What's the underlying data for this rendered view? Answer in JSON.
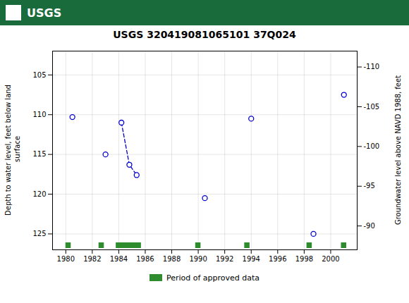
{
  "chart_data": {
    "type": "scatter",
    "title": "USGS 320419081065101 37Q024",
    "annotations": [
      {
        "text": "USGS",
        "color": "#1a6b3c"
      }
    ],
    "ylabel": "Depth to water level, feet below land\n surface",
    "y2label": "Groundwater level above NAVD 1988, feet",
    "xlim": [
      1979,
      2002
    ],
    "xticks": [
      1980,
      1982,
      1984,
      1986,
      1988,
      1990,
      1992,
      1994,
      1996,
      1998,
      2000
    ],
    "ylim": [
      127,
      102
    ],
    "yticks": [
      105,
      110,
      115,
      120,
      125
    ],
    "y2lim": [
      -87,
      -112
    ],
    "y2ticks": [
      -90,
      -95,
      -100,
      -105,
      -110
    ],
    "grid": true,
    "series": [
      {
        "type": "line",
        "line_style": "dashed",
        "color": "#0000cc",
        "x": [
          1984.2,
          1984.8,
          1985.35
        ],
        "values": [
          111.0,
          116.3,
          117.6
        ]
      },
      {
        "type": "scatter",
        "marker": "o",
        "color": "#0000cc",
        "x": [
          1980.5,
          1983.0,
          1984.2,
          1984.8,
          1985.35,
          1990.5,
          1994.0,
          1998.7,
          2001.0
        ],
        "values": [
          110.3,
          115.0,
          111.0,
          116.3,
          117.6,
          120.5,
          110.5,
          125.0,
          107.5
        ]
      }
    ],
    "periods": {
      "name": "Period of approved data",
      "color": "#2e8b2e",
      "x": [
        [
          1980.0,
          1980.4
        ],
        [
          1982.5,
          1982.9
        ],
        [
          1983.8,
          1985.7
        ],
        [
          1989.8,
          1990.2
        ],
        [
          1993.5,
          1993.9
        ],
        [
          1998.2,
          1998.6
        ],
        [
          2000.8,
          2001.2
        ]
      ]
    }
  }
}
